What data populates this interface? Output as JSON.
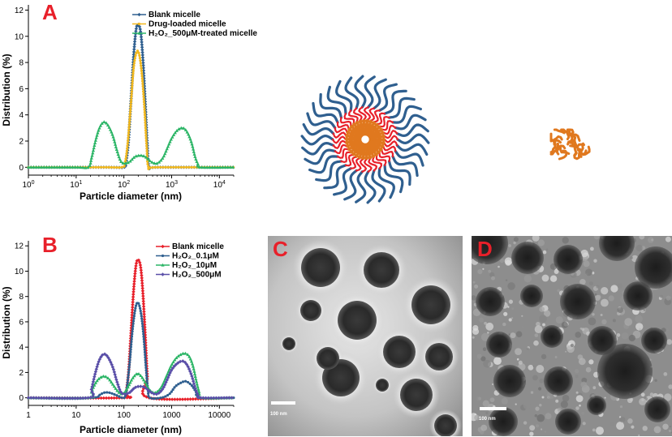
{
  "panels": {
    "a_letter": "A",
    "b_letter": "B",
    "c_letter": "C",
    "d_letter": "D"
  },
  "colors": {
    "panel_letter": "#e8202a",
    "shell": "#2f5f8f",
    "core": "#e0781e",
    "inner": "#e8202a"
  },
  "tem": {
    "c_scale_label": "100 nm",
    "d_scale_label": "100 nm"
  },
  "chart_data": [
    {
      "type": "line",
      "xscale": "log",
      "xlim": [
        1,
        20000
      ],
      "ylim": [
        -0.6,
        12.4
      ],
      "xlabel": "Particle diameter (nm)",
      "ylabel": "Distribution (%)",
      "x_tick_values": [
        1,
        10,
        100,
        1000,
        10000
      ],
      "x_tick_labels": [
        "10⁰",
        "10¹",
        "10²",
        "10³",
        "10⁴"
      ],
      "y_ticks": [
        0,
        2,
        4,
        6,
        8,
        10,
        12
      ],
      "legend_position": "top-right",
      "series": [
        {
          "name": "Blank micelle",
          "color": "#2f5f8f",
          "points": [
            [
              1,
              0
            ],
            [
              40,
              0
            ],
            [
              100,
              0
            ],
            [
              110,
              0.3
            ],
            [
              125,
              2.0
            ],
            [
              140,
              5.0
            ],
            [
              160,
              8.5
            ],
            [
              180,
              10.5
            ],
            [
              200,
              10.9
            ],
            [
              225,
              10.3
            ],
            [
              250,
              8.3
            ],
            [
              280,
              5.0
            ],
            [
              310,
              1.7
            ],
            [
              340,
              0
            ],
            [
              500,
              0
            ],
            [
              20000,
              0
            ]
          ]
        },
        {
          "name": "Drug-loaded micelle",
          "color": "#f2b81e",
          "points": [
            [
              1,
              0
            ],
            [
              40,
              0
            ],
            [
              90,
              0
            ],
            [
              105,
              0.3
            ],
            [
              120,
              1.8
            ],
            [
              140,
              4.8
            ],
            [
              160,
              7.6
            ],
            [
              185,
              8.8
            ],
            [
              210,
              8.6
            ],
            [
              240,
              7.0
            ],
            [
              270,
              4.5
            ],
            [
              300,
              1.6
            ],
            [
              330,
              0
            ],
            [
              500,
              0
            ],
            [
              20000,
              0
            ]
          ]
        },
        {
          "name": "H₂O₂_500μM-treated micelle",
          "color": "#2bb566",
          "points": [
            [
              1,
              0
            ],
            [
              10,
              0
            ],
            [
              18,
              0
            ],
            [
              21,
              0.7
            ],
            [
              25,
              1.9
            ],
            [
              30,
              2.9
            ],
            [
              36,
              3.4
            ],
            [
              42,
              3.4
            ],
            [
              50,
              3.0
            ],
            [
              60,
              2.3
            ],
            [
              70,
              1.4
            ],
            [
              85,
              0.5
            ],
            [
              100,
              0.3
            ],
            [
              130,
              0.4
            ],
            [
              170,
              0.8
            ],
            [
              220,
              0.9
            ],
            [
              280,
              0.8
            ],
            [
              380,
              0.4
            ],
            [
              500,
              0.3
            ],
            [
              650,
              0.7
            ],
            [
              800,
              1.4
            ],
            [
              1000,
              2.2
            ],
            [
              1300,
              2.8
            ],
            [
              1700,
              3.0
            ],
            [
              2100,
              2.7
            ],
            [
              2600,
              1.9
            ],
            [
              3100,
              0.8
            ],
            [
              3600,
              0.2
            ],
            [
              4000,
              0
            ],
            [
              20000,
              0
            ]
          ]
        }
      ]
    },
    {
      "type": "line",
      "xscale": "log",
      "xlim": [
        1,
        20000
      ],
      "ylim": [
        -0.6,
        12.4
      ],
      "xlabel": "Particle diameter (nm)",
      "ylabel": "Distribution (%)",
      "x_tick_values": [
        1,
        10,
        100,
        1000,
        10000
      ],
      "x_tick_labels": [
        "1",
        "10",
        "100",
        "1000",
        "10000"
      ],
      "y_ticks": [
        0,
        2,
        4,
        6,
        8,
        10,
        12
      ],
      "legend_position": "top-right",
      "series": [
        {
          "name": "Blank micelle",
          "color": "#e8202a",
          "points": [
            [
              1,
              0
            ],
            [
              100,
              0
            ],
            [
              110,
              0.3
            ],
            [
              125,
              2.0
            ],
            [
              140,
              5.0
            ],
            [
              160,
              8.5
            ],
            [
              180,
              10.5
            ],
            [
              200,
              10.9
            ],
            [
              225,
              10.3
            ],
            [
              250,
              8.3
            ],
            [
              280,
              5.0
            ],
            [
              310,
              1.7
            ],
            [
              340,
              0
            ],
            [
              20000,
              0
            ]
          ]
        },
        {
          "name": "H₂O₂_0.1μM",
          "color": "#2f5f8f",
          "points": [
            [
              1,
              0
            ],
            [
              20,
              0
            ],
            [
              30,
              0.2
            ],
            [
              38,
              0.4
            ],
            [
              50,
              0.4
            ],
            [
              70,
              0.2
            ],
            [
              95,
              0
            ],
            [
              110,
              0.3
            ],
            [
              130,
              2.5
            ],
            [
              150,
              5.2
            ],
            [
              175,
              7.1
            ],
            [
              200,
              7.5
            ],
            [
              230,
              6.6
            ],
            [
              260,
              4.8
            ],
            [
              290,
              2.4
            ],
            [
              320,
              0.6
            ],
            [
              350,
              0
            ],
            [
              600,
              0
            ],
            [
              900,
              0.3
            ],
            [
              1200,
              0.9
            ],
            [
              1600,
              1.2
            ],
            [
              2000,
              1.3
            ],
            [
              2600,
              1.0
            ],
            [
              3200,
              0.5
            ],
            [
              4000,
              0
            ],
            [
              20000,
              0
            ]
          ]
        },
        {
          "name": "H₂O₂_10μM",
          "color": "#2bb566",
          "points": [
            [
              1,
              0
            ],
            [
              18,
              0
            ],
            [
              21,
              0.5
            ],
            [
              25,
              1.1
            ],
            [
              30,
              1.5
            ],
            [
              38,
              1.7
            ],
            [
              48,
              1.5
            ],
            [
              60,
              1.0
            ],
            [
              75,
              0.5
            ],
            [
              95,
              0.3
            ],
            [
              120,
              0.8
            ],
            [
              150,
              1.5
            ],
            [
              190,
              1.9
            ],
            [
              230,
              1.7
            ],
            [
              280,
              1.2
            ],
            [
              350,
              0.6
            ],
            [
              450,
              0.4
            ],
            [
              600,
              0.8
            ],
            [
              800,
              1.8
            ],
            [
              1000,
              2.6
            ],
            [
              1300,
              3.2
            ],
            [
              1800,
              3.5
            ],
            [
              2300,
              3.3
            ],
            [
              2800,
              2.5
            ],
            [
              3300,
              1.3
            ],
            [
              3800,
              0.4
            ],
            [
              4200,
              0
            ],
            [
              20000,
              0
            ]
          ]
        },
        {
          "name": "H₂O₂_500μM",
          "color": "#5a4fa8",
          "points": [
            [
              1,
              0
            ],
            [
              18,
              0
            ],
            [
              21,
              0.7
            ],
            [
              25,
              1.9
            ],
            [
              30,
              2.9
            ],
            [
              36,
              3.4
            ],
            [
              42,
              3.4
            ],
            [
              50,
              3.0
            ],
            [
              60,
              2.3
            ],
            [
              70,
              1.4
            ],
            [
              85,
              0.5
            ],
            [
              100,
              0.3
            ],
            [
              130,
              0.4
            ],
            [
              170,
              0.8
            ],
            [
              220,
              0.9
            ],
            [
              280,
              0.8
            ],
            [
              380,
              0.4
            ],
            [
              500,
              0.3
            ],
            [
              650,
              0.7
            ],
            [
              800,
              1.4
            ],
            [
              1000,
              2.2
            ],
            [
              1300,
              2.7
            ],
            [
              1700,
              2.9
            ],
            [
              2100,
              2.6
            ],
            [
              2600,
              1.8
            ],
            [
              3100,
              0.8
            ],
            [
              3600,
              0.2
            ],
            [
              4000,
              0
            ],
            [
              20000,
              0
            ]
          ]
        }
      ]
    }
  ]
}
